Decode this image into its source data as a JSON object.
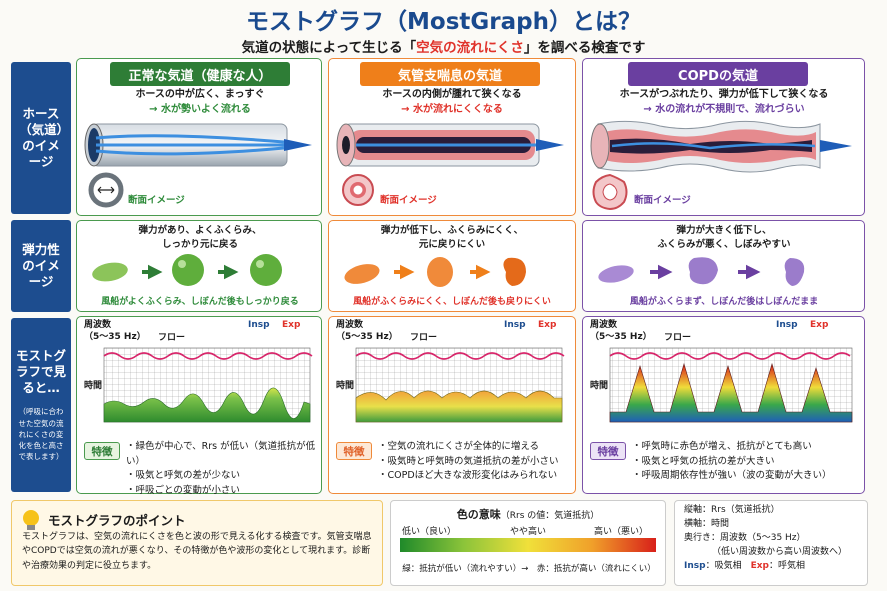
{
  "title": "モストグラフ（MostGraph）とは？",
  "subtitle_pre": "気道の状態によって生じる「",
  "subtitle_hl": "空気の流れにくさ",
  "subtitle_post": "」を調べる検査です",
  "rows": {
    "hose": "ホース（気道）のイメージ",
    "elastic": "弾力性のイメージ",
    "graph": "モストグラフで見ると…",
    "graph_note": "（呼吸に合わせた空気の流れにくさの変化を色と高さで表します）"
  },
  "columns": [
    {
      "head": "正常な気道（健康な人）",
      "hose_line1": "ホースの中が広く、まっすぐ",
      "hose_line2": "→ 水が勢いよく流れる",
      "section_label": "断面イメージ",
      "elastic_line1": "弾力があり、よくふくらみ、",
      "elastic_line2": "しっかり元に戻る",
      "elastic_caption": "風船がよくふくらみ、しぼんだ後もしっかり戻る",
      "feature_label": "特徴",
      "features": [
        "緑色が中心で、Rrs が低い（気道抵抗が低い）",
        "吸気と呼気の差が少ない",
        "呼吸ごとの変動が小さい"
      ]
    },
    {
      "head": "気管支喘息の気道",
      "hose_line1": "ホースの内側が腫れて狭くなる",
      "hose_line2": "→ 水が流れにくくなる",
      "section_label": "断面イメージ",
      "elastic_line1": "弾力が低下し、ふくらみにくく、",
      "elastic_line2": "元に戻りにくい",
      "elastic_caption": "風船がふくらみにくく、しぼんだ後も戻りにくい",
      "feature_label": "特徴",
      "features": [
        "空気の流れにくさが全体的に増える",
        "吸気時と呼気時の気道抵抗の差が小さい",
        "COPDほど大きな波形変化はみられない"
      ]
    },
    {
      "head": "COPDの気道",
      "hose_line1": "ホースがつぶれたり、弾力が低下して狭くなる",
      "hose_line2": "→ 水の流れが不規則で、流れづらい",
      "section_label": "断面イメージ",
      "elastic_line1": "弾力が大きく低下し、",
      "elastic_line2": "ふくらみが悪く、しぼみやすい",
      "elastic_caption": "風船がふくらまず、しぼんだ後はしぼんだまま",
      "feature_label": "特徴",
      "features": [
        "呼気時に赤色が増え、抵抗がとても高い",
        "吸気と呼気の抵抗の差が大きい",
        "呼吸周期依存性が強い（波の変動が大きい）"
      ]
    }
  ],
  "graph_labels": {
    "freq": "周波数",
    "freq_range": "（5～35 Hz）",
    "flow": "フロー",
    "time": "時間",
    "insp": "Insp",
    "exp": "Exp"
  },
  "points": {
    "title": "モストグラフのポイント",
    "body": "モストグラフは、空気の流れにくさを色と波の形で見える化する検査です。気管支喘息やCOPDでは空気の流れが悪くなり、その特徴が色や波形の変化として現れます。診断や治療効果の判定に役立ちます。"
  },
  "legend": {
    "title": "色の意味",
    "subtitle": "（Rrs の値：気道抵抗）",
    "low": "低い（良い）",
    "mid": "やや高い",
    "high": "高い（悪い）",
    "note": "緑：抵抗が低い（流れやすい）→　赤：抵抗が高い（流れにくい）"
  },
  "axes": {
    "v": "縦軸：Rrs（気道抵抗）",
    "h": "横軸：時間",
    "d": "奥行き：周波数（5～35 Hz）",
    "d2": "（低い周波数から高い周波数へ）",
    "insp": "Insp",
    "insp_label": "：吸気相",
    "exp": "Exp",
    "exp_label": "：呼気相"
  },
  "colors": {
    "navy": "#1d4d8f",
    "green": "#2e8b3a",
    "orange": "#ef7f1a",
    "purple": "#6a3fa0",
    "red": "#e0322a"
  }
}
